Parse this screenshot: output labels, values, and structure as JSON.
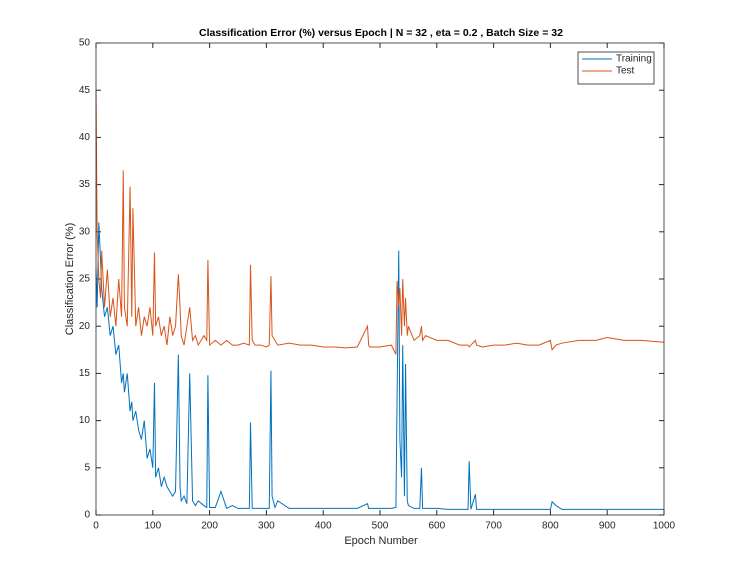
{
  "chart_data": {
    "type": "line",
    "title": "Classification Error (%) versus Epoch | N = 32 , eta = 0.2 , Batch Size = 32",
    "xlabel": "Epoch Number",
    "ylabel": "Classification Error (%)",
    "x": [
      0,
      2,
      5,
      8,
      10,
      15,
      20,
      25,
      30,
      35,
      40,
      45,
      48,
      50,
      55,
      60,
      63,
      65,
      70,
      75,
      80,
      85,
      90,
      95,
      100,
      103,
      105,
      110,
      115,
      120,
      125,
      130,
      135,
      140,
      145,
      148,
      150,
      155,
      160,
      165,
      170,
      175,
      180,
      190,
      195,
      197,
      200,
      210,
      220,
      230,
      240,
      250,
      260,
      270,
      272,
      275,
      280,
      290,
      300,
      305,
      308,
      310,
      315,
      320,
      340,
      360,
      380,
      400,
      420,
      440,
      460,
      478,
      480,
      482,
      500,
      520,
      528,
      530,
      533,
      535,
      538,
      540,
      543,
      545,
      548,
      550,
      560,
      570,
      573,
      575,
      580,
      600,
      620,
      640,
      655,
      657,
      660,
      668,
      670,
      680,
      700,
      720,
      740,
      760,
      780,
      800,
      803,
      810,
      820,
      850,
      880,
      900,
      930,
      960,
      1000
    ],
    "series": [
      {
        "name": "Training",
        "color": "#0072bd",
        "values": [
          26,
          22,
          31,
          27,
          24,
          21,
          22,
          19,
          20,
          17,
          18,
          14,
          15,
          13,
          15,
          11,
          12,
          10,
          11,
          9,
          8,
          10,
          6,
          7,
          5,
          14,
          4,
          5,
          3,
          4,
          3,
          2.5,
          2,
          2.5,
          17,
          3,
          1.5,
          2,
          1.2,
          15,
          1.5,
          1,
          1.5,
          1,
          0.8,
          14.8,
          0.8,
          0.8,
          2.5,
          0.7,
          1,
          0.7,
          0.7,
          0.7,
          9.8,
          0.7,
          0.7,
          0.7,
          0.7,
          0.7,
          15.3,
          2,
          0.8,
          1.5,
          0.7,
          0.7,
          0.7,
          0.7,
          0.7,
          0.7,
          0.7,
          1.2,
          0.7,
          0.7,
          0.7,
          0.7,
          0.8,
          12,
          28,
          8,
          4,
          18,
          2,
          16,
          1.5,
          1,
          0.7,
          0.7,
          5,
          0.7,
          0.7,
          0.7,
          0.6,
          0.6,
          0.6,
          5.7,
          0.6,
          2.2,
          0.6,
          0.6,
          0.6,
          0.6,
          0.6,
          0.6,
          0.6,
          0.6,
          1.4,
          1,
          0.6,
          0.6,
          0.6,
          0.6,
          0.6,
          0.6,
          0.6
        ]
      },
      {
        "name": "Test",
        "color": "#d95319",
        "values": [
          45,
          30,
          25,
          23,
          28,
          22,
          26,
          21,
          23,
          20,
          25,
          21,
          36.5,
          22,
          20,
          34.8,
          21,
          32.5,
          20,
          22,
          19,
          21,
          20,
          22,
          19,
          27.8,
          20,
          21,
          19,
          20,
          18,
          21,
          19,
          20,
          25.5,
          22,
          19,
          18,
          20,
          22,
          18.5,
          19,
          18,
          19,
          18.5,
          27,
          18,
          18.5,
          18,
          18.5,
          18,
          18,
          18.2,
          18,
          26.5,
          18.5,
          18,
          18,
          17.8,
          18,
          25.3,
          19,
          18.5,
          18,
          18.2,
          18,
          18,
          17.8,
          17.8,
          17.7,
          17.8,
          20,
          18,
          17.8,
          17.8,
          18,
          17,
          24.8,
          22,
          24,
          19,
          25,
          20,
          23,
          19,
          20,
          18.5,
          19,
          20,
          18.5,
          19,
          18.5,
          18.5,
          18,
          18,
          17.8,
          18,
          18.5,
          18,
          17.8,
          18,
          18,
          18.2,
          18,
          18,
          18.5,
          17.5,
          18,
          18.2,
          18.5,
          18.5,
          18.8,
          18.5,
          18.5,
          18.3
        ]
      }
    ],
    "xlim": [
      0,
      1000
    ],
    "xticks": [
      0,
      100,
      200,
      300,
      400,
      500,
      600,
      700,
      800,
      900,
      1000
    ],
    "ylim": [
      0,
      50
    ],
    "yticks": [
      0,
      5,
      10,
      15,
      20,
      25,
      30,
      35,
      40,
      45,
      50
    ],
    "legend": "northeast",
    "grid": false
  }
}
